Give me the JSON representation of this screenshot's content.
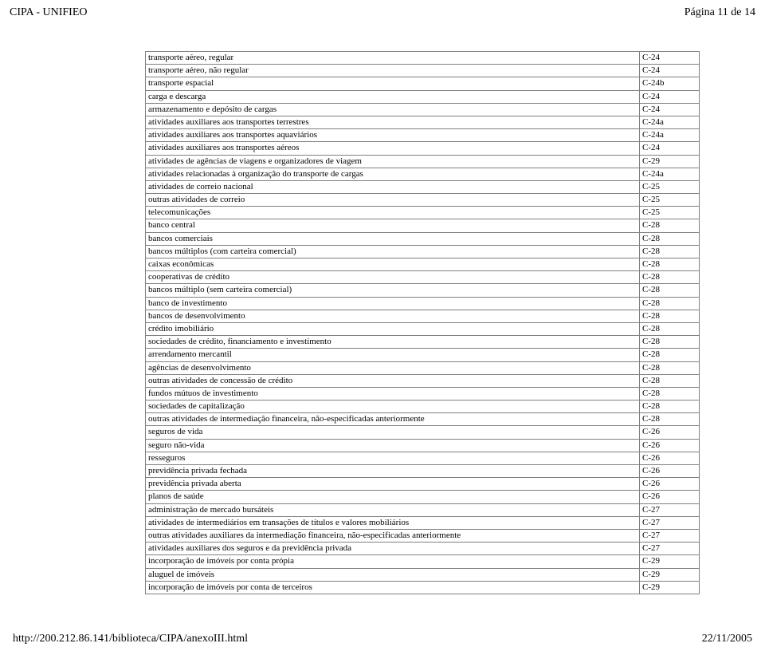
{
  "header": {
    "title": "CIPA - UNIFIEO",
    "page_info": "Página 11 de 14"
  },
  "footer": {
    "url": "http://200.212.86.141/biblioteca/CIPA/anexoIII.html",
    "date": "22/11/2005"
  },
  "rows": [
    {
      "desc": "transporte aéreo, regular",
      "code": "C-24"
    },
    {
      "desc": "transporte aéreo, não regular",
      "code": "C-24"
    },
    {
      "desc": "transporte espacial",
      "code": "C-24b"
    },
    {
      "desc": "carga e descarga",
      "code": "C-24"
    },
    {
      "desc": "armazenamento e depósito de cargas",
      "code": "C-24"
    },
    {
      "desc": "atividades auxiliares aos transportes terrestres",
      "code": "C-24a"
    },
    {
      "desc": "atividades auxiliares aos transportes aquaviários",
      "code": "C-24a"
    },
    {
      "desc": "atividades auxiliares aos transportes aéreos",
      "code": "C-24"
    },
    {
      "desc": "atividades de agências de viagens e organizadores de viagem",
      "code": "C-29"
    },
    {
      "desc": "atividades relacionadas à organização do transporte de cargas",
      "code": "C-24a"
    },
    {
      "desc": "atividades de correio nacional",
      "code": "C-25"
    },
    {
      "desc": "outras atividades de correio",
      "code": "C-25"
    },
    {
      "desc": "telecomunicações",
      "code": "C-25"
    },
    {
      "desc": "banco central",
      "code": "C-28"
    },
    {
      "desc": "bancos comerciais",
      "code": "C-28"
    },
    {
      "desc": "bancos múltiplos (com carteira comercial)",
      "code": "C-28"
    },
    {
      "desc": "caixas econômicas",
      "code": "C-28"
    },
    {
      "desc": "cooperativas de crédito",
      "code": "C-28"
    },
    {
      "desc": "bancos múltiplo (sem carteira comercial)",
      "code": "C-28"
    },
    {
      "desc": "banco de investimento",
      "code": "C-28"
    },
    {
      "desc": "bancos de desenvolvimento",
      "code": "C-28"
    },
    {
      "desc": "crédito imobiliário",
      "code": "C-28"
    },
    {
      "desc": "sociedades de crédito, financiamento e investimento",
      "code": "C-28"
    },
    {
      "desc": "arrendamento mercantil",
      "code": "C-28"
    },
    {
      "desc": "agências de desenvolvimento",
      "code": "C-28"
    },
    {
      "desc": "outras atividades de concessão de crédito",
      "code": "C-28"
    },
    {
      "desc": "fundos mútuos de investimento",
      "code": "C-28"
    },
    {
      "desc": "sociedades de capitalização",
      "code": "C-28"
    },
    {
      "desc": "outras atividades de intermediação financeira, não-especificadas anteriormente",
      "code": "C-28"
    },
    {
      "desc": "seguros de vida",
      "code": "C-26"
    },
    {
      "desc": "seguro não-vida",
      "code": "C-26"
    },
    {
      "desc": "resseguros",
      "code": "C-26"
    },
    {
      "desc": "previdência privada fechada",
      "code": "C-26"
    },
    {
      "desc": "previdência privada aberta",
      "code": "C-26"
    },
    {
      "desc": "planos de saúde",
      "code": "C-26"
    },
    {
      "desc": "administração de mercado bursáteis",
      "code": "C-27"
    },
    {
      "desc": "atividades de intermediários em transações de títulos e valores mobiliários",
      "code": "C-27"
    },
    {
      "desc": "outras atividades auxiliares da intermediação financeira, não-especificadas anteriormente",
      "code": "C-27"
    },
    {
      "desc": "atividades auxiliares dos seguros e da previdência privada",
      "code": "C-27"
    },
    {
      "desc": "incorporação de imóveis por conta própia",
      "code": "C-29"
    },
    {
      "desc": "aluguel de imóveis",
      "code": "C-29"
    },
    {
      "desc": "incorporação de imóveis por conta de terceiros",
      "code": "C-29"
    }
  ]
}
